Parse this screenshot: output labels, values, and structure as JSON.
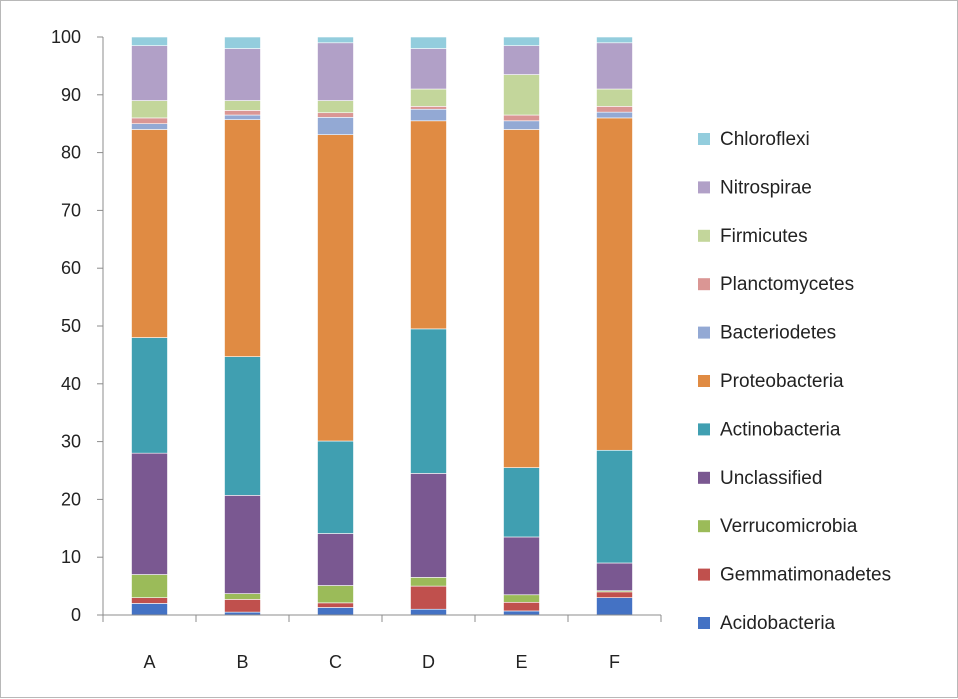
{
  "chart_data": {
    "type": "bar",
    "stacked": true,
    "categories": [
      "A",
      "B",
      "C",
      "D",
      "E",
      "F"
    ],
    "ylim": [
      0,
      100
    ],
    "yticks": [
      0,
      10,
      20,
      30,
      40,
      50,
      60,
      70,
      80,
      90,
      100
    ],
    "grid": false,
    "legend_position": "right",
    "series": [
      {
        "name": "Acidobacteria",
        "color": "#4472c4",
        "values": [
          2.0,
          0.5,
          1.3,
          1.0,
          0.7,
          3.0
        ]
      },
      {
        "name": "Gemmatimonadetes",
        "color": "#c0504d",
        "values": [
          1.0,
          2.2,
          0.8,
          4.0,
          1.5,
          1.0
        ]
      },
      {
        "name": "Verrucomicrobia",
        "color": "#9bbb59",
        "values": [
          4.0,
          1.0,
          3.0,
          1.5,
          1.3,
          0.2
        ]
      },
      {
        "name": "Unclassified",
        "color": "#7a5891",
        "values": [
          21.0,
          17.0,
          9.0,
          18.0,
          10.0,
          4.8
        ]
      },
      {
        "name": "Actinobacteria",
        "color": "#409fb1",
        "values": [
          20.0,
          24.0,
          16.0,
          25.0,
          12.0,
          19.5
        ]
      },
      {
        "name": "Proteobacteria",
        "color": "#e08b43",
        "values": [
          36.0,
          41.0,
          53.0,
          36.0,
          58.5,
          57.5
        ]
      },
      {
        "name": "Bacteriodetes",
        "color": "#93a9d4",
        "values": [
          1.0,
          0.8,
          3.0,
          2.0,
          1.5,
          1.0
        ]
      },
      {
        "name": "Planctomycetes",
        "color": "#da9694",
        "values": [
          1.0,
          0.8,
          0.8,
          0.5,
          1.0,
          1.0
        ]
      },
      {
        "name": "Firmicutes",
        "color": "#c3d69b",
        "values": [
          3.0,
          1.7,
          2.1,
          3.0,
          7.0,
          3.0
        ]
      },
      {
        "name": "Nitrospirae",
        "color": "#b1a0c7",
        "values": [
          9.5,
          9.0,
          10.0,
          7.0,
          5.0,
          8.0
        ]
      },
      {
        "name": "Chloroflexi",
        "color": "#93cddd",
        "values": [
          1.5,
          2.0,
          1.0,
          2.0,
          1.5,
          1.0
        ]
      }
    ]
  }
}
